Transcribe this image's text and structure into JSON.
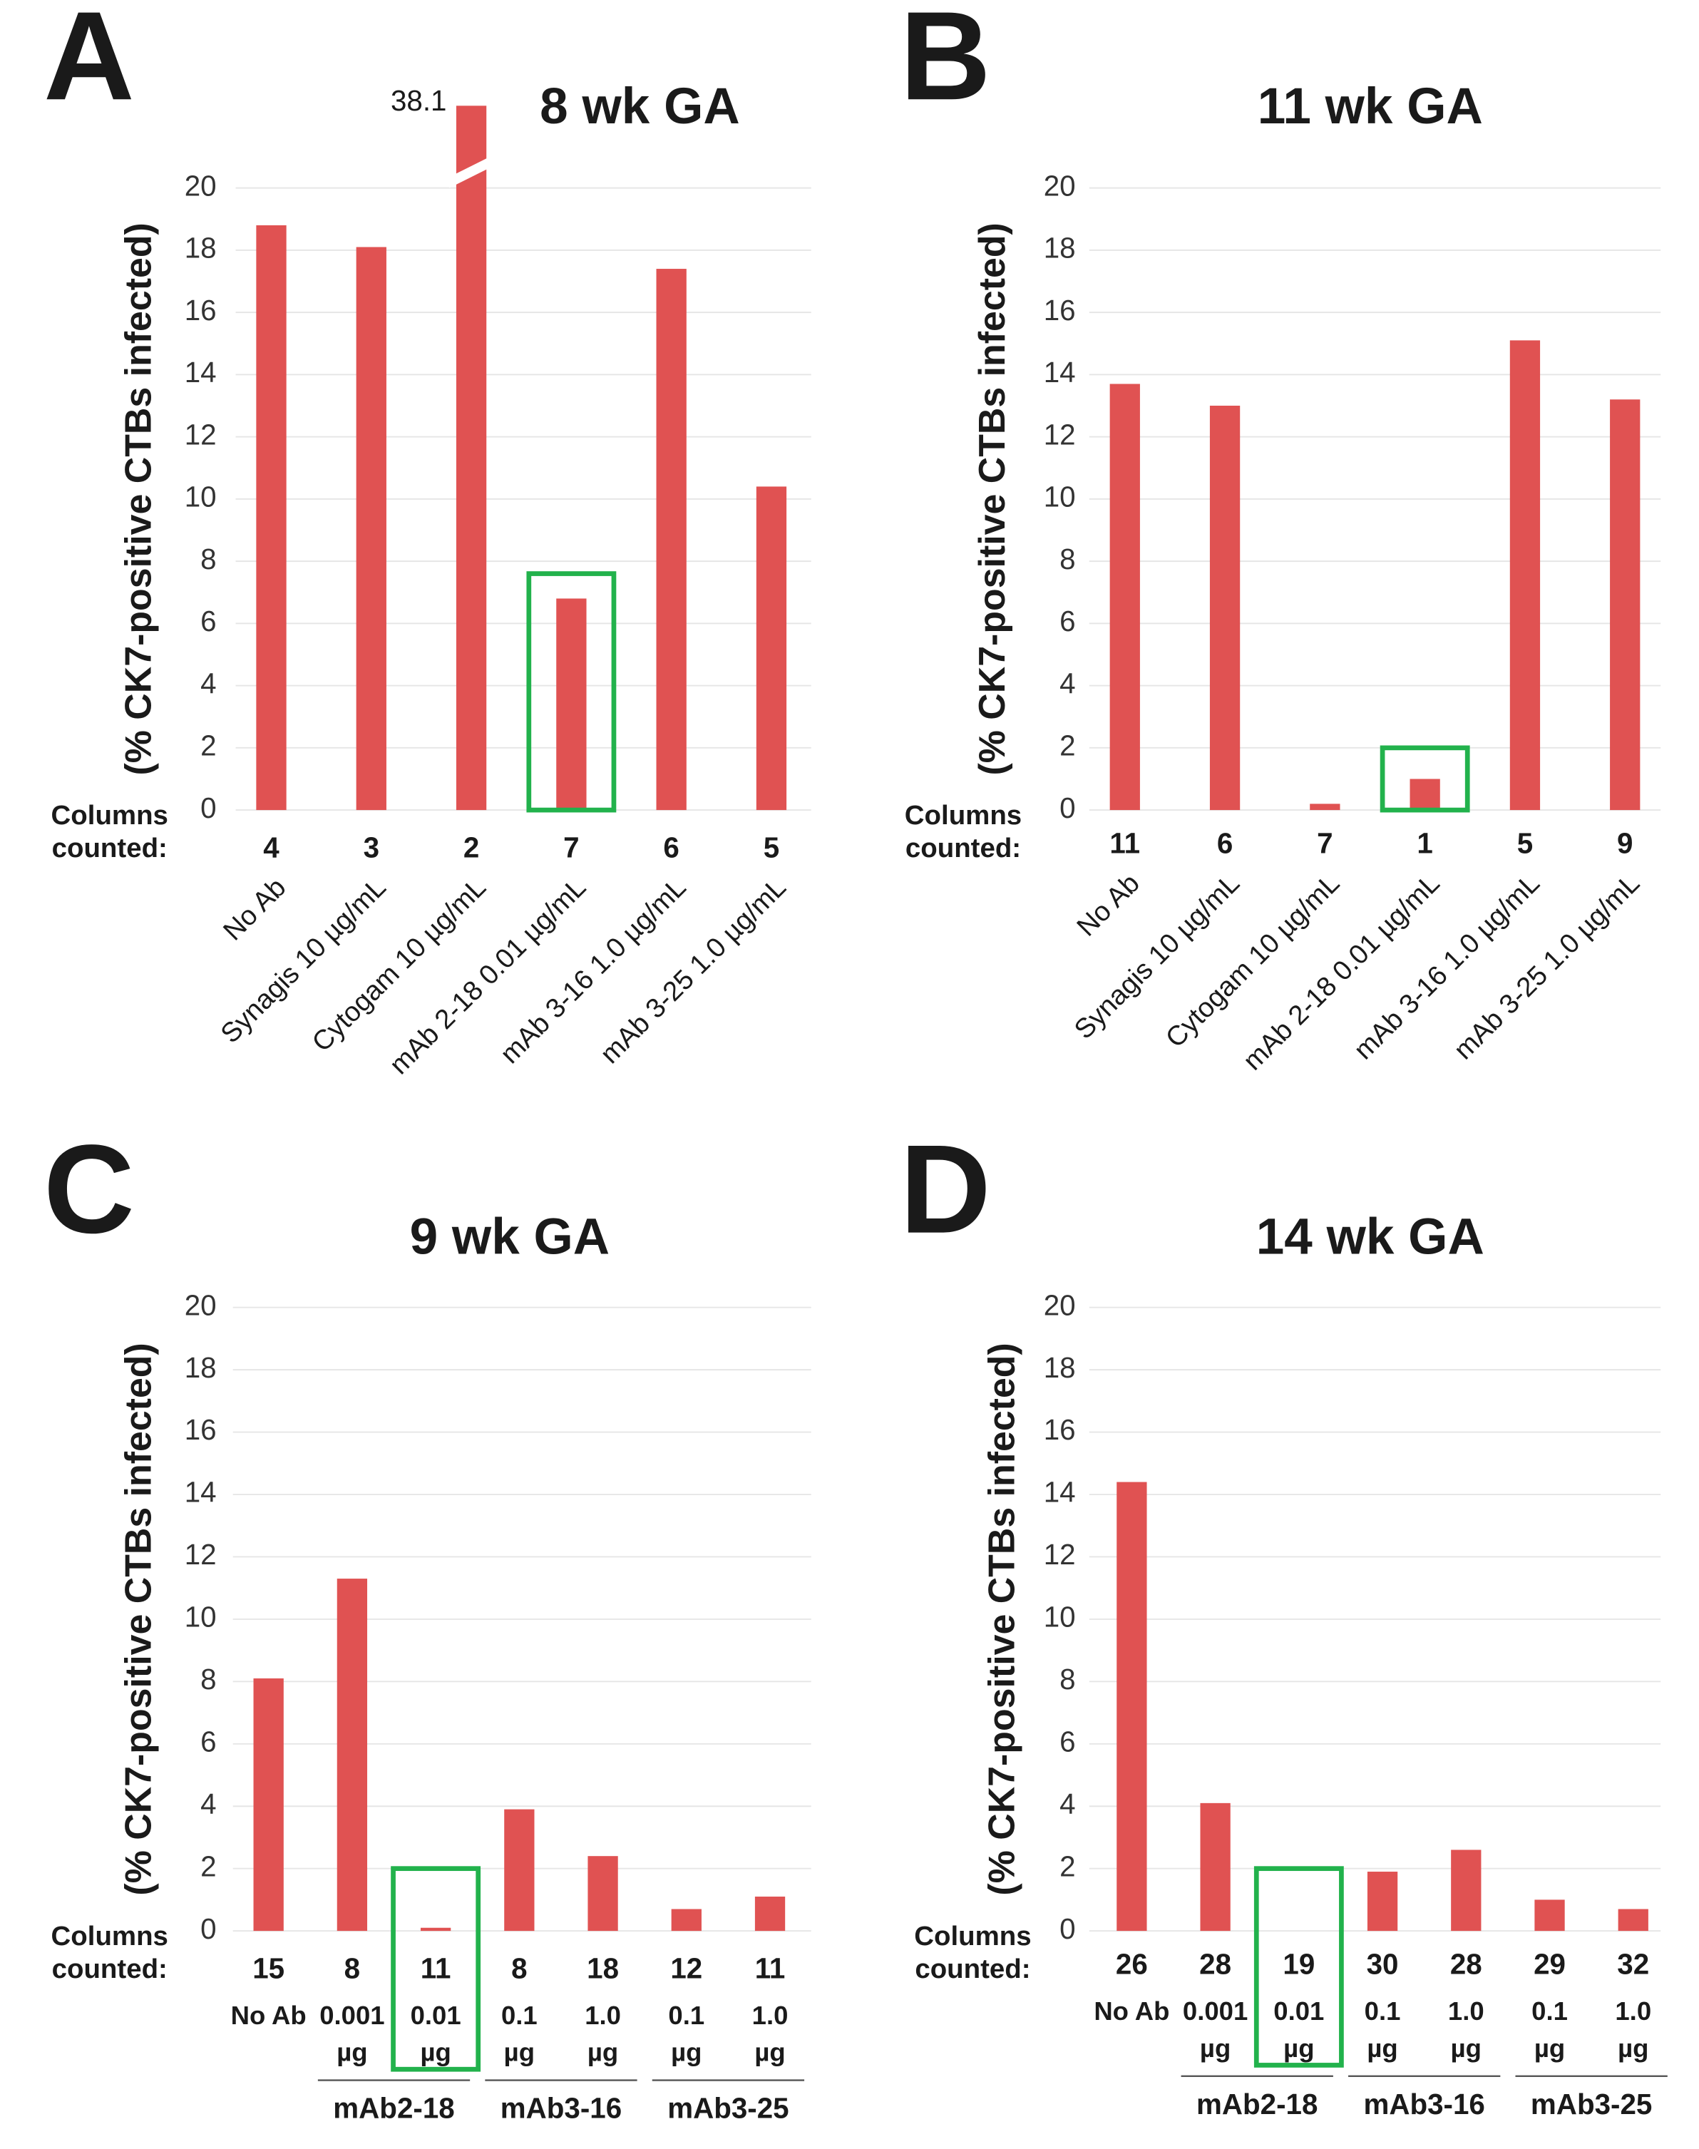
{
  "chart_data": [
    {
      "type": "bar",
      "panel": "A",
      "title": "8 wk GA",
      "ylabel": "(% CK7-positive CTBs infected)",
      "categories": [
        "No Ab",
        "Synagis 10 µg/mL",
        "Cytogam 10 µg/mL",
        "mAb 2-18 0.01 µg/mL",
        "mAb 3-16 1.0 µg/mL",
        "mAb 3-25 1.0 µg/mL"
      ],
      "values": [
        18.8,
        18.1,
        38.1,
        6.8,
        17.4,
        10.4
      ],
      "value_labels": [
        null,
        null,
        "38.1",
        null,
        null,
        null
      ],
      "counted_label": [
        "Columns",
        "counted:"
      ],
      "columns_counted": [
        4,
        3,
        2,
        7,
        6,
        5
      ],
      "color": "#e05252",
      "highlight": 3,
      "highlight_color": "#22b24c",
      "ylim": [
        0,
        20
      ],
      "yticks": [
        0,
        2,
        4,
        6,
        8,
        10,
        12,
        14,
        16,
        18,
        20
      ],
      "grid": true
    },
    {
      "type": "bar",
      "panel": "B",
      "title": "11 wk GA",
      "ylabel": "(% CK7-positive CTBs infected)",
      "categories": [
        "No Ab",
        "Synagis 10 µg/mL",
        "Cytogam 10 µg/mL",
        "mAb 2-18 0.01 µg/mL",
        "mAb 3-16 1.0 µg/mL",
        "mAb 3-25 1.0 µg/mL"
      ],
      "values": [
        13.7,
        13.0,
        0.2,
        1.0,
        15.1,
        13.2
      ],
      "counted_label": [
        "Columns",
        "counted:"
      ],
      "columns_counted": [
        11,
        6,
        7,
        1,
        5,
        9
      ],
      "color": "#e05252",
      "highlight": 3,
      "highlight_color": "#22b24c",
      "ylim": [
        0,
        20
      ],
      "yticks": [
        0,
        2,
        4,
        6,
        8,
        10,
        12,
        14,
        16,
        18,
        20
      ],
      "grid": true
    },
    {
      "type": "bar",
      "panel": "C",
      "title": "9 wk GA",
      "ylabel": "(% CK7-positive CTBs infected)",
      "categories": [
        "No Ab",
        "0.001",
        "0.01",
        "0.1",
        "1.0",
        "0.1",
        "1.0"
      ],
      "category_units": [
        null,
        "µg",
        "µg",
        "µg",
        "µg",
        "µg",
        "µg"
      ],
      "groups": [
        {
          "label": "mAb2-18",
          "members": [
            1,
            2
          ]
        },
        {
          "label": "mAb3-16",
          "members": [
            3,
            4
          ]
        },
        {
          "label": "mAb3-25",
          "members": [
            5,
            6
          ]
        }
      ],
      "values": [
        8.1,
        11.3,
        0.1,
        3.9,
        2.4,
        0.7,
        1.1
      ],
      "counted_label": [
        "Columns",
        "counted:"
      ],
      "columns_counted": [
        15,
        8,
        11,
        8,
        18,
        12,
        11
      ],
      "color": "#e05252",
      "highlight": 2,
      "highlight_color": "#22b24c",
      "ylim": [
        0,
        20
      ],
      "yticks": [
        0,
        2,
        4,
        6,
        8,
        10,
        12,
        14,
        16,
        18,
        20
      ],
      "grid": true
    },
    {
      "type": "bar",
      "panel": "D",
      "title": "14 wk GA",
      "ylabel": "(% CK7-positive CTBs infected)",
      "categories": [
        "No Ab",
        "0.001",
        "0.01",
        "0.1",
        "1.0",
        "0.1",
        "1.0"
      ],
      "category_units": [
        null,
        "µg",
        "µg",
        "µg",
        "µg",
        "µg",
        "µg"
      ],
      "groups": [
        {
          "label": "mAb2-18",
          "members": [
            1,
            2
          ]
        },
        {
          "label": "mAb3-16",
          "members": [
            3,
            4
          ]
        },
        {
          "label": "mAb3-25",
          "members": [
            5,
            6
          ]
        }
      ],
      "values": [
        14.4,
        4.1,
        0,
        1.9,
        2.6,
        1.0,
        0.7
      ],
      "counted_label": [
        "Columns",
        "counted:"
      ],
      "columns_counted": [
        26,
        28,
        19,
        30,
        28,
        29,
        32
      ],
      "color": "#e05252",
      "highlight": 2,
      "highlight_color": "#22b24c",
      "ylim": [
        0,
        20
      ],
      "yticks": [
        0,
        2,
        4,
        6,
        8,
        10,
        12,
        14,
        16,
        18,
        20
      ],
      "grid": true
    }
  ]
}
